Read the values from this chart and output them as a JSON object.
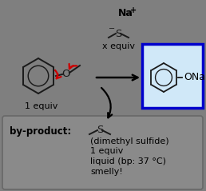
{
  "bg_color": "#7f7f7f",
  "reagent_box_bg": "#d0e8f8",
  "reagent_box_border": "#0000cc",
  "byproduct_box_bg": "#8a8a8a",
  "byproduct_box_border": "#686868",
  "na_plus_text": "Na",
  "xequiv_text": "x equiv",
  "one_equiv_text": "1 equiv",
  "ona_text": "ONa",
  "byproduct_label": "by-product:",
  "byproduct_lines": [
    "(dimethyl sulfide)",
    "1 equiv",
    "liquid (bp: 37 °C)",
    "smelly!"
  ],
  "arrow_color": "#000000",
  "red_arrow_color": "#cc0000",
  "bond_color": "#1a1a1a"
}
